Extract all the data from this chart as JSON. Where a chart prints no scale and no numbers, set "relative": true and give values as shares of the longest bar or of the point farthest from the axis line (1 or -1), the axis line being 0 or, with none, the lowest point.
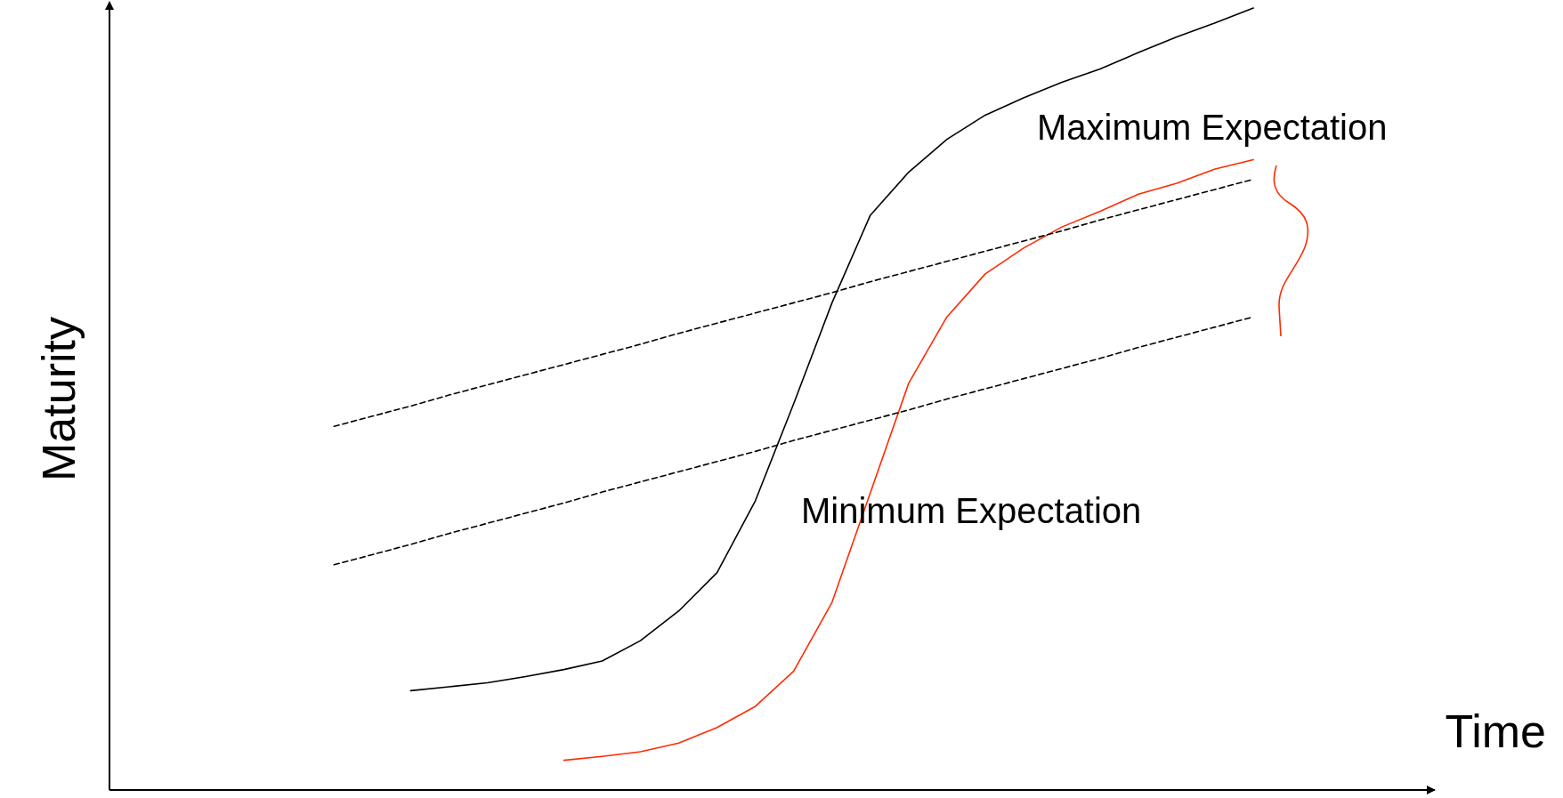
{
  "chart_data": {
    "type": "line",
    "relative": true,
    "xlabel": "Time",
    "ylabel": "Maturity",
    "categories": [
      null,
      null,
      null,
      null,
      null,
      null,
      null,
      null,
      null,
      null,
      null,
      null,
      null,
      null,
      null,
      null,
      null,
      null,
      null,
      null,
      null,
      null,
      null,
      null,
      null
    ],
    "series": [
      {
        "color": "#000000",
        "values": [
          null,
          null,
          0.127,
          0.132,
          0.137,
          0.145,
          0.154,
          0.165,
          0.191,
          0.229,
          0.278,
          0.37,
          0.494,
          0.623,
          0.735,
          0.79,
          0.832,
          0.863,
          0.885,
          0.905,
          0.922,
          0.943,
          0.963,
          0.981,
          1.0
        ]
      },
      {
        "color": "#ff2a00",
        "values": [
          null,
          null,
          null,
          null,
          null,
          null,
          0.038,
          0.043,
          0.049,
          0.06,
          0.08,
          0.107,
          0.152,
          0.24,
          0.38,
          0.52,
          0.605,
          0.66,
          0.693,
          0.72,
          0.74,
          0.762,
          0.776,
          0.794,
          0.806
        ]
      },
      {
        "color": "#000000",
        "line_style": "dashed",
        "values": [
          0.465,
          0.478,
          0.491,
          0.505,
          0.518,
          0.531,
          0.544,
          0.557,
          0.57,
          0.584,
          0.597,
          0.61,
          0.623,
          0.636,
          0.65,
          0.663,
          0.676,
          0.689,
          0.702,
          0.715,
          0.729,
          0.742,
          0.755,
          0.768,
          0.781
        ]
      },
      {
        "color": "#000000",
        "line_style": "dashed",
        "values": [
          0.288,
          0.301,
          0.314,
          0.328,
          0.341,
          0.354,
          0.367,
          0.381,
          0.394,
          0.407,
          0.42,
          0.433,
          0.447,
          0.46,
          0.473,
          0.486,
          0.5,
          0.513,
          0.526,
          0.539,
          0.552,
          0.566,
          0.579,
          0.592,
          0.605
        ]
      }
    ],
    "annotations": [
      "Maximum Expectation",
      "Minimum Expectation"
    ]
  }
}
